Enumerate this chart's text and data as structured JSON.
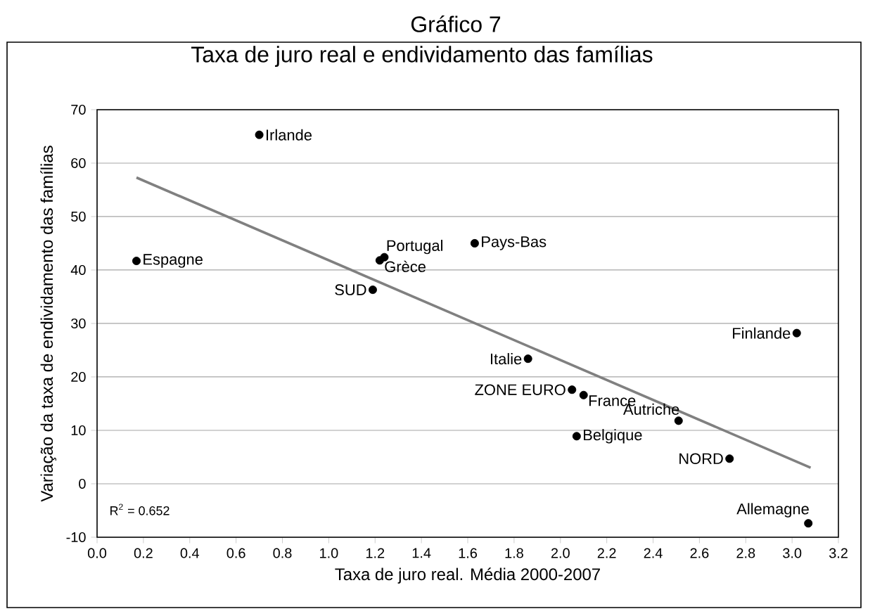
{
  "chart_data": {
    "type": "scatter",
    "title": "Gráfico 7",
    "subtitle": "Taxa de juro real e endividamento das famílias",
    "xlabel": "Taxa de juro real.  Média 2000-2007",
    "ylabel": "Variação da taxa de endividamento das famílias",
    "series": [
      {
        "color": "#000000",
        "x": [
          0.7,
          0.17,
          1.24,
          1.22,
          1.19,
          1.63,
          1.86,
          2.05,
          2.1,
          2.07,
          2.51,
          2.73,
          3.02,
          3.07
        ],
        "values": [
          65.3,
          41.7,
          42.4,
          41.8,
          36.3,
          45.0,
          23.4,
          17.6,
          16.6,
          8.9,
          11.8,
          4.7,
          28.2,
          -7.4
        ]
      },
      {
        "type": "line",
        "marker": "none",
        "color": "#808080",
        "x": [
          0.17,
          3.08
        ],
        "values": [
          57.3,
          3.0
        ]
      }
    ],
    "annotations": [
      {
        "text": "Irlande",
        "x": 0.7,
        "y": 65.3
      },
      {
        "text": "Espagne",
        "x": 0.17,
        "y": 41.7
      },
      {
        "text": "Portugal",
        "x": 1.24,
        "y": 42.4
      },
      {
        "text": "Grèce",
        "x": 1.22,
        "y": 41.8
      },
      {
        "text": "SUD",
        "x": 1.19,
        "y": 36.3
      },
      {
        "text": "Pays-Bas",
        "x": 1.63,
        "y": 45.0
      },
      {
        "text": "Italie",
        "x": 1.86,
        "y": 23.4
      },
      {
        "text": "ZONE EURO",
        "x": 2.05,
        "y": 17.6
      },
      {
        "text": "France",
        "x": 2.1,
        "y": 16.6
      },
      {
        "text": "Belgique",
        "x": 2.07,
        "y": 8.9
      },
      {
        "text": "Autriche",
        "x": 2.51,
        "y": 11.8
      },
      {
        "text": "NORD",
        "x": 2.73,
        "y": 4.7
      },
      {
        "text": "Finlande",
        "x": 3.02,
        "y": 28.2
      },
      {
        "text": "Allemagne",
        "x": 3.07,
        "y": -7.4
      },
      "R$^{2}$ = 0.652"
    ],
    "xlim": [
      0,
      3.2
    ],
    "ylim": [
      -10,
      70
    ],
    "xticks": [
      {
        "value": 0,
        "label": "0.0"
      },
      {
        "value": 0.2,
        "label": "0.2"
      },
      {
        "value": 0.4,
        "label": "0.4"
      },
      {
        "value": 0.6,
        "label": "0.6"
      },
      {
        "value": 0.8,
        "label": "0.8"
      },
      {
        "value": 1.0,
        "label": "1.0"
      },
      {
        "value": 1.2,
        "label": "1.2"
      },
      {
        "value": 1.4,
        "label": "1.4"
      },
      {
        "value": 1.6,
        "label": "1.6"
      },
      {
        "value": 1.8,
        "label": "1.8"
      },
      {
        "value": 2.0,
        "label": "2.0"
      },
      {
        "value": 2.2,
        "label": "2.2"
      },
      {
        "value": 2.4,
        "label": "2.4"
      },
      {
        "value": 2.6,
        "label": "2.6"
      },
      {
        "value": 2.8,
        "label": "2.8"
      },
      {
        "value": 3.0,
        "label": "3.0"
      },
      {
        "value": 3.2,
        "label": "3.2"
      }
    ],
    "yticks": [
      -10,
      0,
      10,
      20,
      30,
      40,
      50,
      60,
      70
    ],
    "grid": "y",
    "marker": "circle"
  }
}
